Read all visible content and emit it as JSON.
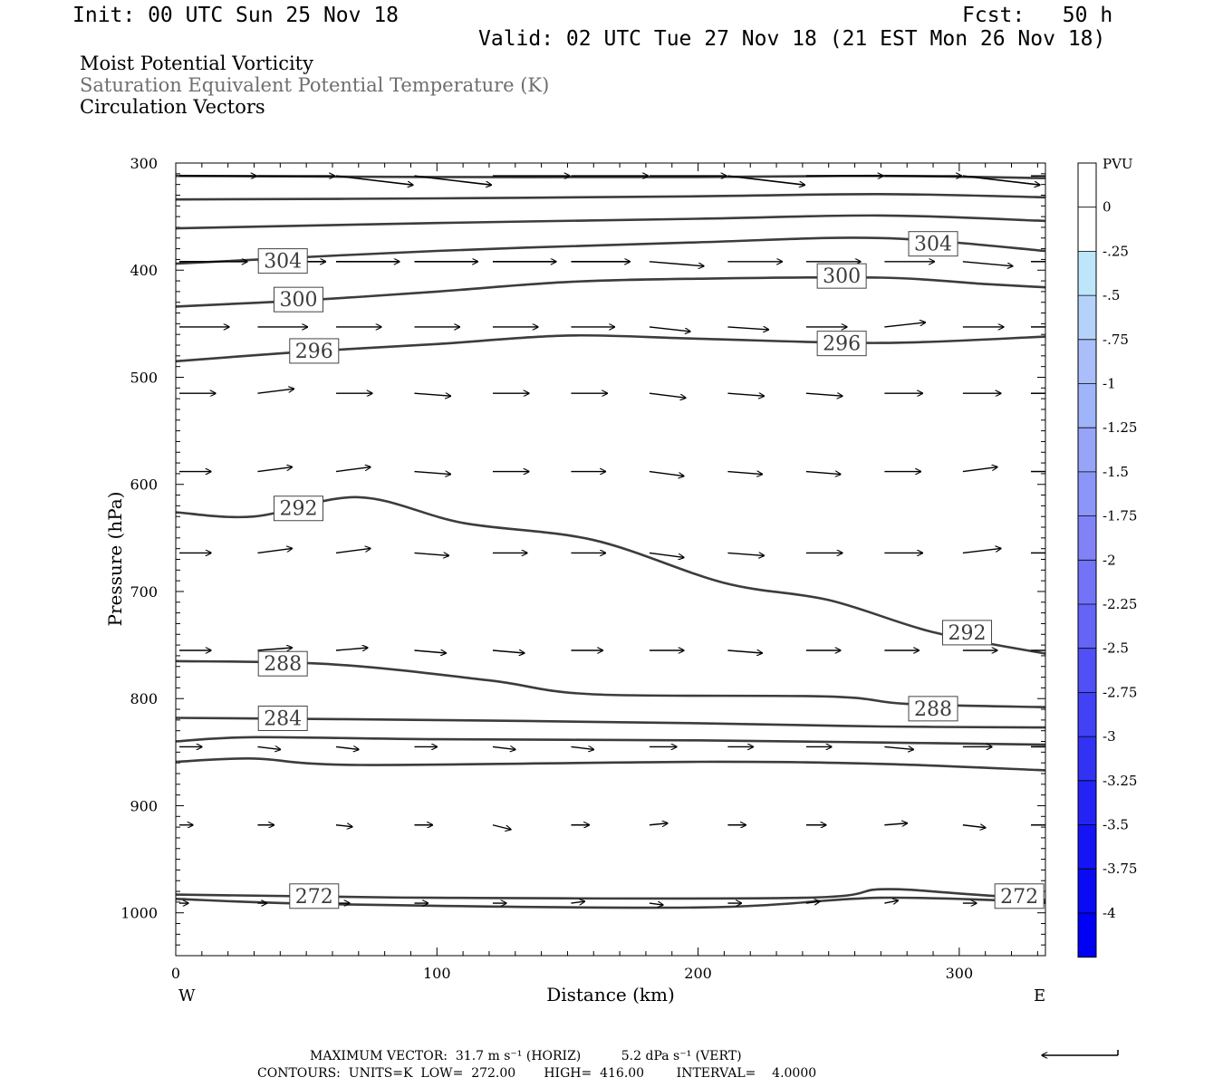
{
  "header": {
    "init": "Init: 00 UTC Sun 25 Nov 18",
    "fcst": "Fcst:   50 h",
    "valid": "Valid: 02 UTC Tue 27 Nov 18 (21 EST Mon 26 Nov 18)"
  },
  "fields": [
    {
      "label": "Moist Potential Vorticity",
      "color": "#000000"
    },
    {
      "label": "Saturation Equivalent Potential Temperature (K)",
      "color": "#6e6e6e"
    },
    {
      "label": "Circulation Vectors",
      "color": "#000000"
    }
  ],
  "footer": {
    "max_vector": "MAXIMUM VECTOR:  31.7 m s⁻¹ (HORIZ)          5.2 dPa s⁻¹ (VERT)",
    "contours": "CONTOURS:  UNITS=K  LOW=  272.00       HIGH=  416.00        INTERVAL=    4.0000"
  },
  "chart_data": {
    "type": "cross-section",
    "xlabel": "Distance (km)",
    "ylabel": "Pressure (hPa)",
    "xlim": [
      0,
      333
    ],
    "ylim": [
      1040,
      300
    ],
    "x_ticks": [
      0,
      100,
      200,
      300
    ],
    "y_ticks": [
      300,
      400,
      500,
      600,
      700,
      800,
      900,
      1000
    ],
    "x_left_label": "W",
    "x_right_label": "E",
    "colorbar": {
      "unit": "PVU",
      "levels": [
        "0",
        "-.25",
        "-.5",
        "-.75",
        "-1",
        "-1.25",
        "-1.5",
        "-1.75",
        "-2",
        "-2.25",
        "-2.5",
        "-2.75",
        "-3",
        "-3.25",
        "-3.5",
        "-3.75",
        "-4"
      ],
      "colors": [
        "#ffffff",
        "#ffffff",
        "#bee6fa",
        "#b4d2fa",
        "#aabef9",
        "#a0b4f9",
        "#96a5f8",
        "#8c96f8",
        "#8282f7",
        "#7373f7",
        "#6464f6",
        "#5050f6",
        "#4141f5",
        "#3232f5",
        "#2323f5",
        "#1414f5",
        "#0a0af5",
        "#0000f5"
      ]
    },
    "contours": [
      {
        "label": "",
        "points": [
          [
            0,
            312
          ],
          [
            100,
            313
          ],
          [
            200,
            313
          ],
          [
            270,
            312
          ],
          [
            333,
            314
          ]
        ]
      },
      {
        "label": "",
        "points": [
          [
            0,
            334
          ],
          [
            100,
            333
          ],
          [
            200,
            331
          ],
          [
            270,
            329
          ],
          [
            333,
            332
          ]
        ]
      },
      {
        "label": "",
        "points": [
          [
            0,
            361
          ],
          [
            100,
            356
          ],
          [
            200,
            352
          ],
          [
            270,
            349
          ],
          [
            333,
            354
          ]
        ]
      },
      {
        "label": "",
        "points": [
          [
            0,
            394
          ],
          [
            100,
            382
          ],
          [
            200,
            374
          ],
          [
            270,
            370
          ],
          [
            333,
            382
          ]
        ]
      },
      {
        "label": "",
        "points": [
          [
            0,
            434
          ],
          [
            50,
            428
          ],
          [
            100,
            420
          ],
          [
            150,
            411
          ],
          [
            200,
            408
          ],
          [
            270,
            407
          ],
          [
            310,
            413
          ],
          [
            333,
            416
          ]
        ]
      },
      {
        "label": "",
        "points": [
          [
            0,
            485
          ],
          [
            50,
            476
          ],
          [
            100,
            469
          ],
          [
            150,
            461
          ],
          [
            200,
            464
          ],
          [
            270,
            468
          ],
          [
            333,
            462
          ]
        ]
      },
      {
        "label": "",
        "points": [
          [
            0,
            626
          ],
          [
            30,
            630
          ],
          [
            70,
            612
          ],
          [
            110,
            636
          ],
          [
            160,
            652
          ],
          [
            210,
            692
          ],
          [
            250,
            708
          ],
          [
            290,
            738
          ],
          [
            333,
            758
          ]
        ]
      },
      {
        "label": "",
        "points": [
          [
            0,
            765
          ],
          [
            60,
            768
          ],
          [
            120,
            783
          ],
          [
            160,
            796
          ],
          [
            250,
            798
          ],
          [
            280,
            805
          ],
          [
            333,
            808
          ]
        ]
      },
      {
        "label": "",
        "points": [
          [
            0,
            818
          ],
          [
            100,
            820
          ],
          [
            200,
            823
          ],
          [
            270,
            826
          ],
          [
            333,
            827
          ]
        ]
      },
      {
        "label": "",
        "points": [
          [
            0,
            840
          ],
          [
            30,
            836
          ],
          [
            100,
            838
          ],
          [
            200,
            839
          ],
          [
            270,
            841
          ],
          [
            333,
            843
          ]
        ]
      },
      {
        "label": "",
        "points": [
          [
            0,
            859
          ],
          [
            30,
            856
          ],
          [
            70,
            862
          ],
          [
            200,
            859
          ],
          [
            270,
            861
          ],
          [
            333,
            867
          ]
        ]
      },
      {
        "label": "",
        "points": [
          [
            0,
            983
          ],
          [
            100,
            986
          ],
          [
            240,
            986
          ],
          [
            270,
            978
          ],
          [
            300,
            982
          ],
          [
            333,
            988
          ]
        ]
      },
      {
        "label": "",
        "points": [
          [
            0,
            987
          ],
          [
            60,
            992
          ],
          [
            200,
            995
          ],
          [
            270,
            986
          ],
          [
            333,
            990
          ]
        ]
      }
    ],
    "contour_labels": [
      {
        "text": "304",
        "x": 41,
        "p": 391
      },
      {
        "text": "304",
        "x": 290,
        "p": 375
      },
      {
        "text": "300",
        "x": 47,
        "p": 427
      },
      {
        "text": "300",
        "x": 255,
        "p": 405
      },
      {
        "text": "296",
        "x": 53,
        "p": 475
      },
      {
        "text": "296",
        "x": 255,
        "p": 468
      },
      {
        "text": "292",
        "x": 47,
        "p": 622
      },
      {
        "text": "292",
        "x": 303,
        "p": 738
      },
      {
        "text": "288",
        "x": 41,
        "p": 767
      },
      {
        "text": "288",
        "x": 290,
        "p": 809
      },
      {
        "text": "284",
        "x": 41,
        "p": 818
      },
      {
        "text": "272",
        "x": 53,
        "p": 984
      },
      {
        "text": "272",
        "x": 323,
        "p": 984
      }
    ],
    "vectors": {
      "x_positions": [
        0,
        30,
        60,
        90,
        120,
        150,
        180,
        210,
        240,
        270,
        300
      ],
      "rows": [
        {
          "p": 312,
          "u": [
            0.85,
            0.85,
            0.85,
            0.85,
            0.85,
            0.85,
            0.85,
            0.85,
            0.85,
            0.85,
            0.85
          ],
          "v": [
            0,
            0,
            -0.1,
            -0.1,
            0,
            0,
            0,
            -0.1,
            0,
            0,
            -0.1
          ]
        },
        {
          "p": 392,
          "u": [
            0.75,
            0.75,
            0.7,
            0.7,
            0.7,
            0.65,
            0.6,
            0.6,
            0.6,
            0.55,
            0.55
          ],
          "v": [
            0,
            0,
            0,
            0,
            0,
            0,
            -0.05,
            0,
            0,
            0,
            -0.05
          ]
        },
        {
          "p": 453,
          "u": [
            0.55,
            0.55,
            0.5,
            0.5,
            0.5,
            0.48,
            0.45,
            0.45,
            0.45,
            0.45,
            0.45
          ],
          "v": [
            0,
            0,
            0,
            0,
            0,
            0,
            -0.05,
            -0.03,
            0,
            0.05,
            0
          ]
        },
        {
          "p": 515,
          "u": [
            0.4,
            0.4,
            0.4,
            0.4,
            0.4,
            0.4,
            0.4,
            0.4,
            0.4,
            0.42,
            0.42
          ],
          "v": [
            0,
            0.05,
            0,
            -0.03,
            0,
            0,
            -0.05,
            -0.03,
            -0.03,
            0,
            0
          ]
        },
        {
          "p": 588,
          "u": [
            0.35,
            0.38,
            0.38,
            0.4,
            0.4,
            0.38,
            0.38,
            0.38,
            0.38,
            0.4,
            0.38
          ],
          "v": [
            0,
            0.05,
            0.05,
            -0.03,
            0,
            0,
            -0.05,
            -0.03,
            -0.03,
            0,
            0.05
          ]
        },
        {
          "p": 664,
          "u": [
            0.35,
            0.38,
            0.38,
            0.38,
            0.38,
            0.38,
            0.38,
            0.4,
            0.4,
            0.42,
            0.42
          ],
          "v": [
            0,
            0.05,
            0.05,
            -0.03,
            0,
            0,
            -0.05,
            -0.03,
            0,
            0,
            0.05
          ]
        },
        {
          "p": 755,
          "u": [
            0.35,
            0.38,
            0.35,
            0.35,
            0.35,
            0.35,
            0.38,
            0.38,
            0.38,
            0.38,
            0.38
          ],
          "v": [
            0,
            0.03,
            0.03,
            -0.03,
            -0.03,
            0,
            0,
            -0.03,
            0,
            0,
            0
          ]
        },
        {
          "p": 845,
          "u": [
            0.25,
            0.25,
            0.25,
            0.25,
            0.25,
            0.25,
            0.3,
            0.28,
            0.28,
            0.32,
            0.32
          ],
          "v": [
            0,
            -0.03,
            -0.03,
            0,
            -0.03,
            -0.03,
            0,
            0,
            0,
            -0.03,
            0
          ]
        },
        {
          "p": 918,
          "u": [
            0.15,
            0.18,
            0.18,
            0.2,
            0.2,
            0.2,
            0.2,
            0.2,
            0.22,
            0.25,
            0.25
          ],
          "v": [
            0,
            0,
            -0.02,
            0,
            -0.05,
            0,
            0.02,
            0,
            0,
            0.02,
            -0.03
          ]
        },
        {
          "p": 991,
          "u": [
            0.1,
            0.1,
            0.15,
            0.15,
            0.15,
            0.15,
            0.15,
            0.15,
            0.15,
            0.15,
            0.15
          ],
          "v": [
            0,
            0,
            0,
            0,
            0,
            0.02,
            -0.02,
            0,
            0.02,
            0.03,
            0
          ]
        }
      ]
    }
  }
}
